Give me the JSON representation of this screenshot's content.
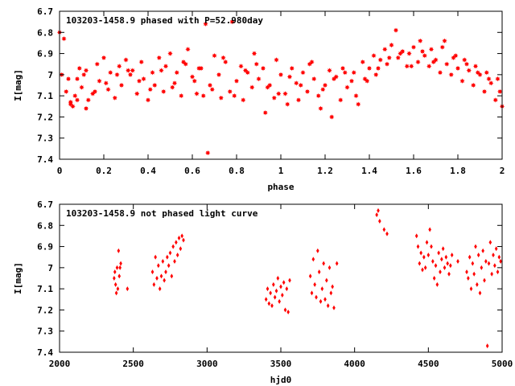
{
  "chart_data": [
    {
      "type": "scatter",
      "title": "103203-1458.9 phased with P=52.980day",
      "xlabel": "phase",
      "ylabel": "I[mag]",
      "xlim": [
        0,
        2
      ],
      "ylim": [
        6.7,
        7.4
      ],
      "y_inverted": true,
      "x_ticks": [
        "0",
        "0.2",
        "0.4",
        "0.6",
        "0.8",
        "1",
        "1.2",
        "1.4",
        "1.6",
        "1.8",
        "2"
      ],
      "y_ticks": [
        "6.7",
        "6.8",
        "6.9",
        "7",
        "7.1",
        "7.2",
        "7.3",
        "7.4"
      ],
      "marker_color": "#ff0000",
      "marker": "star",
      "series": [
        {
          "x": [
            0.0,
            0.02,
            0.03,
            0.04,
            0.05,
            0.06,
            0.07,
            0.08,
            0.09,
            0.1,
            0.11,
            0.12,
            0.13,
            0.15,
            0.17,
            0.18,
            0.2,
            0.22,
            0.23,
            0.25,
            0.27,
            0.28,
            0.3,
            0.32,
            0.33,
            0.35,
            0.37,
            0.38,
            0.4,
            0.42,
            0.43,
            0.45,
            0.47,
            0.48,
            0.5,
            0.52,
            0.53,
            0.55,
            0.57,
            0.58,
            0.6,
            0.62,
            0.63,
            0.65,
            0.66,
            0.67,
            0.68,
            0.7,
            0.72,
            0.73,
            0.75,
            0.77,
            0.78,
            0.8,
            0.82,
            0.83,
            0.85,
            0.87,
            0.88,
            0.9,
            0.92,
            0.93,
            0.95,
            0.97,
            0.98,
            1.0,
            1.02,
            1.03,
            1.05,
            1.07,
            1.08,
            1.1,
            1.12,
            1.13,
            1.15,
            1.17,
            1.18,
            1.2,
            1.22,
            1.23,
            1.25,
            1.27,
            1.28,
            1.3,
            1.32,
            1.33,
            1.35,
            1.37,
            1.38,
            1.4,
            1.42,
            1.43,
            1.45,
            1.47,
            1.48,
            1.5,
            1.52,
            1.53,
            1.55,
            1.57,
            1.58,
            1.6,
            1.62,
            1.63,
            1.65,
            1.67,
            1.68,
            1.7,
            1.72,
            1.73,
            1.75,
            1.77,
            1.78,
            1.8,
            1.82,
            1.83,
            1.85,
            1.87,
            1.88,
            1.9,
            1.92,
            1.93,
            1.95,
            1.97,
            1.98,
            2.0,
            0.01,
            0.05,
            0.08,
            0.12,
            0.16,
            0.21,
            0.26,
            0.31,
            0.36,
            0.41,
            0.46,
            0.51,
            0.56,
            0.61,
            0.64,
            0.69,
            0.74,
            0.79,
            0.84,
            0.89,
            0.94,
            0.99,
            1.04,
            1.09,
            1.14,
            1.19,
            1.24,
            1.29,
            1.34,
            1.39,
            1.44,
            1.49,
            1.54,
            1.59,
            1.64,
            1.69,
            1.74,
            1.79,
            1.84,
            1.89,
            1.94,
            1.99
          ],
          "y": [
            6.8,
            6.83,
            7.08,
            7.02,
            7.13,
            7.15,
            7.1,
            7.02,
            6.97,
            7.06,
            7.0,
            6.98,
            7.12,
            7.09,
            6.95,
            7.03,
            6.92,
            7.07,
            6.99,
            7.11,
            6.96,
            7.05,
            6.93,
            7.0,
            6.98,
            7.09,
            6.94,
            7.02,
            7.12,
            6.99,
            7.05,
            6.92,
            7.08,
            6.96,
            6.9,
            7.04,
            6.99,
            7.1,
            6.95,
            6.88,
            7.01,
            7.09,
            6.97,
            7.1,
            6.76,
            7.37,
            7.05,
            6.91,
            7.0,
            7.11,
            6.94,
            7.08,
            6.75,
            7.03,
            6.96,
            7.12,
            6.99,
            7.06,
            6.9,
            7.02,
            6.97,
            7.18,
            7.05,
            7.11,
            6.93,
            7.0,
            7.09,
            7.14,
            6.97,
            7.04,
            7.12,
            6.99,
            7.08,
            6.95,
            7.02,
            7.1,
            7.16,
            7.05,
            6.98,
            7.2,
            7.01,
            7.12,
            6.97,
            7.06,
            7.03,
            6.99,
            7.14,
            6.94,
            7.02,
            6.97,
            6.91,
            7.0,
            6.93,
            6.88,
            6.95,
            6.86,
            6.79,
            6.92,
            6.89,
            6.96,
            6.9,
            6.87,
            6.94,
            6.84,
            6.91,
            6.96,
            6.88,
            6.93,
            6.99,
            6.87,
            6.95,
            7.0,
            6.92,
            6.97,
            7.03,
            6.93,
            6.98,
            7.05,
            6.96,
            7.0,
            7.08,
            6.99,
            7.04,
            7.12,
            7.02,
            7.15,
            7.0,
            7.14,
            7.12,
            7.16,
            7.08,
            7.04,
            7.0,
            6.98,
            7.03,
            7.07,
            6.98,
            7.06,
            6.94,
            7.03,
            6.97,
            7.07,
            6.92,
            7.1,
            6.98,
            6.95,
            7.06,
            7.09,
            7.01,
            7.05,
            6.94,
            7.07,
            7.02,
            6.99,
            7.1,
            7.03,
            6.97,
            6.92,
            6.9,
            6.96,
            6.89,
            6.94,
            6.84,
            6.91,
            6.95,
            6.99,
            7.02,
            7.08
          ]
        }
      ]
    },
    {
      "type": "scatter",
      "title": "103203-1458.9 not phased light curve",
      "xlabel": "hjd0",
      "ylabel": "I[mag]",
      "xlim": [
        2000,
        5000
      ],
      "ylim": [
        6.7,
        7.4
      ],
      "y_inverted": true,
      "x_ticks": [
        "2000",
        "2500",
        "3000",
        "3500",
        "4000",
        "4500",
        "5000"
      ],
      "y_ticks": [
        "6.7",
        "6.8",
        "6.9",
        "7",
        "7.1",
        "7.2",
        "7.3",
        "7.4"
      ],
      "marker_color": "#ff0000",
      "marker": "diamond",
      "series": [
        {
          "x": [
            2370,
            2375,
            2380,
            2385,
            2390,
            2395,
            2400,
            2405,
            2410,
            2415,
            2460,
            2630,
            2640,
            2650,
            2660,
            2670,
            2680,
            2690,
            2700,
            2710,
            2720,
            2730,
            2740,
            2750,
            2760,
            2770,
            2780,
            2790,
            2800,
            2810,
            2820,
            2830,
            2840,
            3400,
            3410,
            3420,
            3430,
            3440,
            3450,
            3460,
            3470,
            3480,
            3490,
            3500,
            3510,
            3520,
            3530,
            3540,
            3550,
            3560,
            3700,
            3710,
            3720,
            3730,
            3740,
            3750,
            3760,
            3770,
            3780,
            3790,
            3800,
            3810,
            3820,
            3830,
            3840,
            3850,
            3860,
            3880,
            4150,
            4160,
            4170,
            4200,
            4220,
            4420,
            4430,
            4440,
            4450,
            4460,
            4470,
            4480,
            4490,
            4500,
            4510,
            4520,
            4530,
            4540,
            4550,
            4560,
            4570,
            4580,
            4590,
            4600,
            4610,
            4620,
            4630,
            4640,
            4650,
            4660,
            4700,
            4760,
            4770,
            4780,
            4790,
            4800,
            4810,
            4820,
            4830,
            4840,
            4850,
            4860,
            4870,
            4880,
            4890,
            4900,
            4910,
            4920,
            4930,
            4940,
            4950,
            4960,
            4970,
            4980,
            4990
          ],
          "y": [
            7.05,
            7.02,
            7.08,
            7.12,
            7.0,
            7.1,
            6.92,
            7.04,
            7.0,
            6.98,
            7.1,
            7.02,
            7.08,
            6.95,
            7.05,
            6.99,
            7.1,
            7.04,
            6.97,
            7.06,
            7.02,
            6.95,
            6.99,
            6.93,
            7.04,
            6.9,
            6.97,
            6.88,
            6.94,
            6.86,
            6.91,
            6.85,
            6.87,
            7.15,
            7.1,
            7.17,
            7.12,
            7.18,
            7.08,
            7.14,
            7.11,
            7.05,
            7.16,
            7.09,
            7.13,
            7.07,
            7.2,
            7.1,
            7.21,
            7.06,
            7.04,
            7.12,
            6.96,
            7.08,
            7.14,
            6.92,
            7.02,
            7.16,
            7.1,
            6.98,
            7.15,
            7.06,
            7.18,
            7.0,
            7.12,
            7.09,
            7.19,
            6.98,
            6.75,
            6.73,
            6.78,
            6.82,
            6.84,
            6.85,
            6.9,
            6.98,
            6.93,
            7.01,
            6.95,
            7.0,
            6.88,
            6.94,
            6.82,
            6.9,
            6.97,
            7.05,
            6.99,
            7.08,
            6.93,
            7.02,
            6.96,
            6.91,
            7.0,
            6.95,
            6.98,
            7.03,
            6.99,
            6.94,
            6.97,
            7.02,
            7.05,
            6.95,
            7.1,
            6.98,
            7.03,
            6.9,
            7.08,
            6.94,
            7.12,
            7.0,
            6.92,
            7.06,
            6.97,
            7.37,
            6.98,
            6.88,
            7.03,
            6.94,
            6.99,
            6.91,
            7.02,
            6.95,
            6.97
          ]
        }
      ]
    }
  ]
}
